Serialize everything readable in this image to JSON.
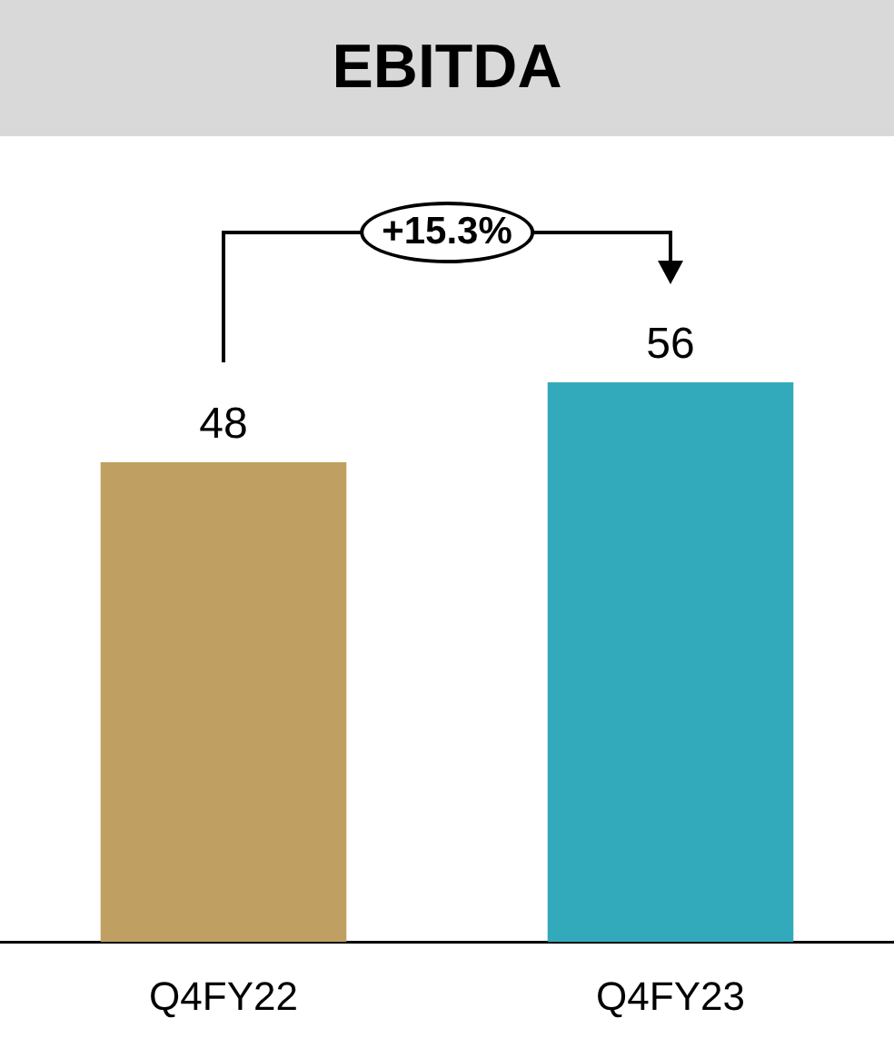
{
  "chart_data": {
    "type": "bar",
    "title": "EBITDA",
    "categories": [
      "Q4FY22",
      "Q4FY23"
    ],
    "values": [
      48,
      56
    ],
    "colors": [
      "#bfa062",
      "#32aabb"
    ],
    "data_labels": true,
    "annotations": [
      "+15.3%"
    ]
  }
}
